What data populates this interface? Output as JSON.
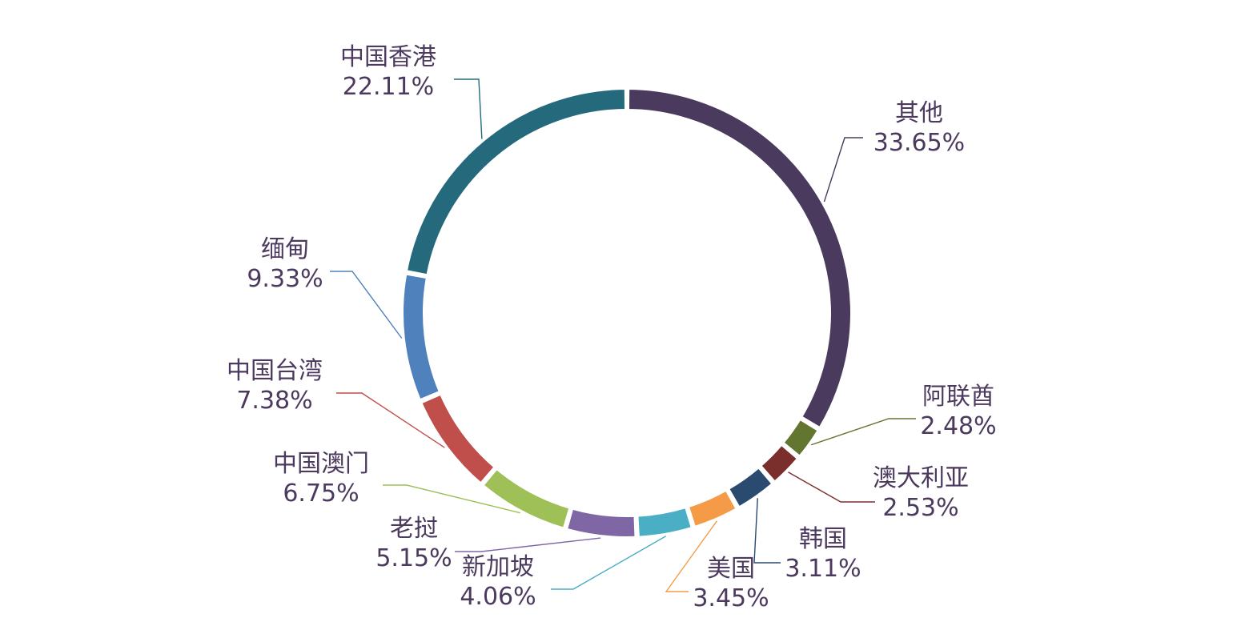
{
  "chart_data": {
    "type": "pie",
    "variant": "donut",
    "title": "",
    "legend": "none",
    "label_color": "#4b3a5e",
    "slices": [
      {
        "name": "其他",
        "value": 33.65,
        "label": "33.65%",
        "color": "#4a3a5e"
      },
      {
        "name": "阿联酋",
        "value": 2.48,
        "label": "2.48%",
        "color": "#637630"
      },
      {
        "name": "澳大利亚",
        "value": 2.53,
        "label": "2.53%",
        "color": "#7b2f2c"
      },
      {
        "name": "韩国",
        "value": 3.11,
        "label": "3.11%",
        "color": "#2b4a70"
      },
      {
        "name": "美国",
        "value": 3.45,
        "label": "3.45%",
        "color": "#f59b47"
      },
      {
        "name": "新加坡",
        "value": 4.06,
        "label": "4.06%",
        "color": "#4aaec5"
      },
      {
        "name": "老挝",
        "value": 5.15,
        "label": "5.15%",
        "color": "#7f67a6"
      },
      {
        "name": "中国澳门",
        "value": 6.75,
        "label": "6.75%",
        "color": "#9ec057"
      },
      {
        "name": "中国台湾",
        "value": 7.38,
        "label": "7.38%",
        "color": "#c04f4c"
      },
      {
        "name": "缅甸",
        "value": 9.33,
        "label": "9.33%",
        "color": "#4f81bd"
      },
      {
        "name": "中国香港",
        "value": 22.11,
        "label": "22.11%",
        "color": "#246a7c"
      }
    ]
  }
}
